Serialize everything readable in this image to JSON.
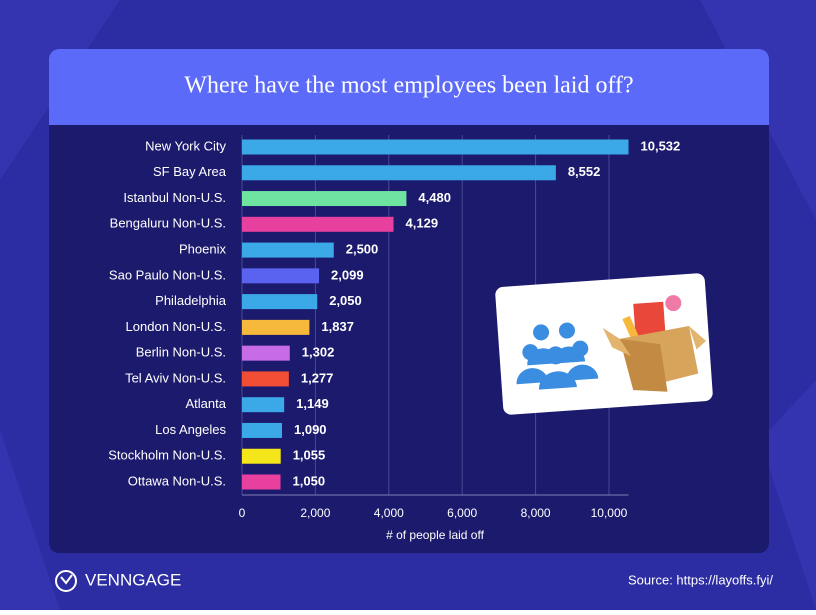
{
  "chart_data": {
    "type": "hbar",
    "title": "Where have the most employees been laid off?",
    "categories": [
      "New York City",
      "SF Bay Area",
      "Istanbul Non-U.S.",
      "Bengaluru Non-U.S.",
      "Phoenix",
      "Sao Paulo Non-U.S.",
      "Philadelphia",
      "London Non-U.S.",
      "Berlin Non-U.S.",
      "Tel Aviv Non-U.S.",
      "Atlanta",
      "Los Angeles",
      "Stockholm Non-U.S.",
      "Ottawa Non-U.S."
    ],
    "values": [
      10532,
      8552,
      4480,
      4129,
      2500,
      2099,
      2050,
      1837,
      1302,
      1277,
      1149,
      1090,
      1055,
      1050
    ],
    "value_labels": [
      "10,532",
      "8,552",
      "4,480",
      "4,129",
      "2,500",
      "2,099",
      "2,050",
      "1,837",
      "1,302",
      "1,277",
      "1,149",
      "1,090",
      "1,055",
      "1,050"
    ],
    "colors": [
      "#3ba9e8",
      "#3ba9e8",
      "#6fe3a0",
      "#e8409e",
      "#3ba9e8",
      "#5a62f0",
      "#3ba9e8",
      "#f6b93b",
      "#c86be6",
      "#f24e36",
      "#3ba9e8",
      "#3ba9e8",
      "#f5e51b",
      "#e8409e"
    ],
    "xlabel": "# of people laid off",
    "xlim": [
      0,
      10532
    ],
    "xticks": [
      0,
      {
        "value": 2000,
        "label": "2,000"
      },
      {
        "value": 4000,
        "label": "4,000"
      },
      {
        "value": 6000,
        "label": "6,000"
      },
      {
        "value": 8000,
        "label": "8,000"
      },
      {
        "value": 10000,
        "label": "10,000"
      }
    ],
    "grid": true
  },
  "footer": {
    "brand": "VENNGAGE",
    "source": "Source: https://layoffs.fyi/"
  }
}
